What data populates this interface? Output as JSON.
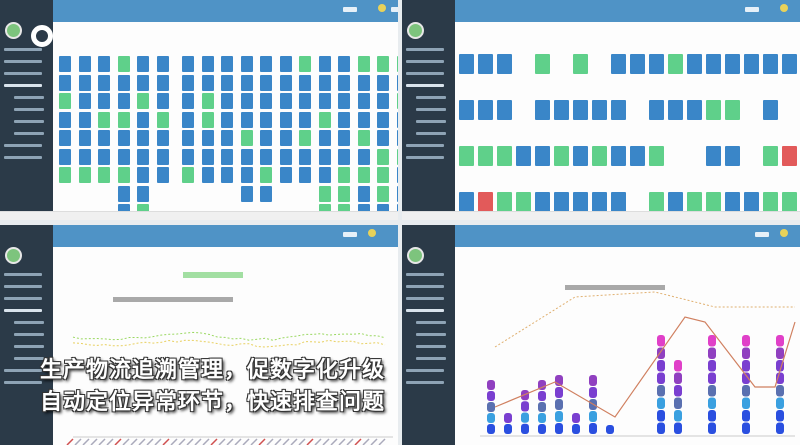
{
  "caption": {
    "line1": "生产物流追溯管理，促数字化升级",
    "line2": "自动定位异常环节，快速排查问题"
  },
  "colors": {
    "sidebar": "#2b3a48",
    "header": "#4f93c6",
    "tile_blue": "#3a86c8",
    "tile_green": "#5fd08a",
    "tile_red": "#e25a5a",
    "bar_magenta": "#e040c8",
    "bar_purple": "#7a3fd0",
    "bar_blue": "#2a4fe0"
  },
  "panels": [
    "agv-station-columns",
    "station-tile-grid",
    "line-chart-view",
    "stacked-bar-chart-view"
  ]
}
